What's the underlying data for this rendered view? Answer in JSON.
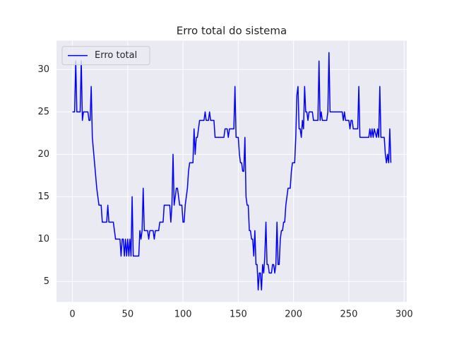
{
  "chart_data": {
    "type": "line",
    "title": "Erro total do sistema",
    "x": [
      0,
      2,
      3,
      4,
      7,
      8,
      9,
      10,
      14,
      15,
      16,
      17,
      18,
      20,
      22,
      24,
      26,
      27,
      31,
      32,
      33,
      37,
      38,
      39,
      43,
      44,
      45,
      46,
      47,
      48,
      49,
      50,
      51,
      52,
      53,
      54,
      55,
      60,
      61,
      62,
      63,
      64,
      65,
      68,
      69,
      70,
      73,
      74,
      75,
      78,
      79,
      82,
      83,
      88,
      89,
      90,
      91,
      92,
      93,
      94,
      95,
      97,
      99,
      100,
      101,
      102,
      104,
      105,
      106,
      109,
      110,
      111,
      112,
      113,
      114,
      115,
      119,
      120,
      121,
      123,
      124,
      125,
      128,
      129,
      137,
      138,
      140,
      141,
      142,
      146,
      147,
      148,
      150,
      151,
      152,
      153,
      154,
      155,
      156,
      157,
      158,
      159,
      160,
      161,
      162,
      163,
      164,
      165,
      166,
      167,
      168,
      169,
      170,
      171,
      172,
      173,
      174,
      175,
      176,
      177,
      178,
      180,
      181,
      182,
      183,
      184,
      185,
      186,
      187,
      188,
      189,
      190,
      191,
      192,
      193,
      194,
      195,
      197,
      198,
      199,
      201,
      202,
      203,
      204,
      205,
      206,
      207,
      208,
      209,
      210,
      211,
      212,
      213,
      214,
      217,
      218,
      222,
      223,
      224,
      225,
      226,
      230,
      231,
      232,
      233,
      244,
      245,
      246,
      247,
      250,
      251,
      252,
      253,
      254,
      258,
      259,
      260,
      268,
      269,
      270,
      271,
      272,
      273,
      275,
      276,
      277,
      278,
      279,
      282,
      283,
      284,
      285,
      286,
      287,
      288
    ],
    "series": [
      {
        "name": "Erro total",
        "color": "#0000ff",
        "values": [
          25,
          25,
          31,
          25,
          25,
          31,
          24,
          25,
          25,
          24,
          24,
          28,
          22,
          19,
          16,
          14,
          14,
          12,
          12,
          14,
          12,
          12,
          11,
          10,
          10,
          8,
          10,
          10,
          8,
          10,
          8,
          10,
          8,
          10,
          8,
          15,
          8,
          8,
          11,
          10,
          11,
          16,
          11,
          11,
          10,
          11,
          11,
          10,
          11,
          11,
          12,
          12,
          14,
          14,
          12,
          14,
          20,
          14,
          15,
          16,
          16,
          14,
          14,
          12,
          12,
          14,
          16,
          18,
          19,
          19,
          23,
          20,
          22,
          22,
          23,
          24,
          24,
          25,
          24,
          24,
          25,
          24,
          24,
          22,
          22,
          23,
          23,
          22,
          23,
          23,
          28,
          22,
          22,
          20,
          19,
          19,
          18,
          18,
          22,
          15,
          14,
          14,
          11,
          11,
          10,
          10,
          8,
          11,
          7,
          7,
          4,
          6,
          6,
          4,
          7,
          6,
          8,
          12,
          7,
          7,
          6,
          6,
          7,
          7,
          6,
          7,
          12,
          7,
          7,
          10,
          11,
          11,
          12,
          12,
          14,
          15,
          16,
          16,
          18,
          19,
          19,
          22,
          27,
          28,
          23,
          23,
          22,
          24,
          23,
          28,
          25,
          25,
          24,
          25,
          25,
          24,
          24,
          31,
          24,
          25,
          24,
          24,
          25,
          32,
          25,
          25,
          24,
          25,
          24,
          24,
          23,
          24,
          24,
          23,
          23,
          28,
          22,
          22,
          23,
          22,
          23,
          22,
          23,
          22,
          23,
          22,
          28,
          22,
          22,
          20,
          19,
          20,
          19,
          23,
          19
        ]
      }
    ],
    "xlim": [
      -14.4,
      302.4
    ],
    "ylim": [
      2.6,
      33.4
    ],
    "xticks": [
      0,
      50,
      100,
      150,
      200,
      250,
      300
    ],
    "yticks": [
      5,
      10,
      15,
      20,
      25,
      30
    ],
    "grid": true,
    "legend": "upper left"
  }
}
